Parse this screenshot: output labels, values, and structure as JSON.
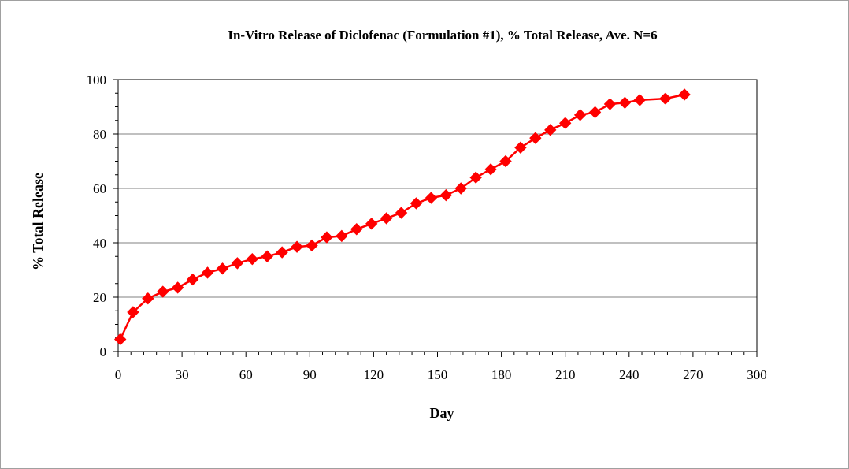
{
  "chart_data": {
    "type": "line",
    "title": "In-Vitro Release of Diclofenac (Formulation #1), % Total Release, Ave. N=6",
    "xlabel": "Day",
    "ylabel": "% Total Release",
    "xlim": [
      0,
      300
    ],
    "ylim": [
      0,
      100
    ],
    "x_ticks": [
      0,
      30,
      60,
      90,
      120,
      150,
      180,
      210,
      240,
      270,
      300
    ],
    "y_ticks": [
      0,
      20,
      40,
      60,
      80,
      100
    ],
    "grid": "horizontal",
    "legend": "none",
    "series": [
      {
        "color": "#ff0000",
        "marker": "diamond",
        "x": [
          1,
          7,
          14,
          21,
          28,
          35,
          42,
          49,
          56,
          63,
          70,
          77,
          84,
          91,
          98,
          105,
          112,
          119,
          126,
          133,
          140,
          147,
          154,
          161,
          168,
          175,
          182,
          189,
          196,
          203,
          210,
          217,
          224,
          231,
          238,
          245,
          257,
          266
        ],
        "y": [
          4.5,
          14.5,
          19.5,
          22,
          23.5,
          26.5,
          29,
          30.5,
          32.5,
          34,
          35,
          36.5,
          38.5,
          39,
          42,
          42.5,
          45,
          47,
          49,
          51,
          54.5,
          56.5,
          57.5,
          60,
          64,
          67,
          70,
          75,
          78.5,
          81.5,
          84,
          87,
          88,
          91,
          91.5,
          92.5,
          93,
          94.5
        ]
      }
    ]
  }
}
